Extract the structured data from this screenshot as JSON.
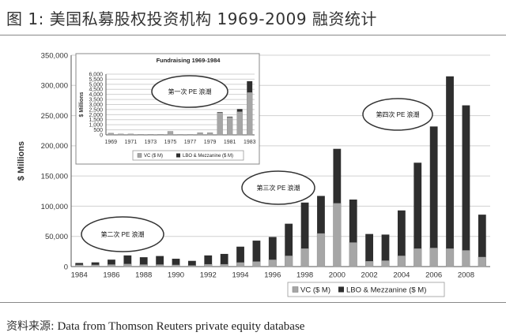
{
  "header": {
    "title": "图 1:  美国私募股权投资机构 1969-2009 融资统计"
  },
  "footer": {
    "source_label": "资料来源:",
    "source_text": "Data from Thomson Reuters private equity database"
  },
  "colors": {
    "vc": "#a6a6a6",
    "lbo": "#2e2e2e",
    "grid": "#d0d0d0",
    "axis": "#555555",
    "bubble_fill": "#ffffff",
    "bubble_stroke": "#333333"
  },
  "chart_data": [
    {
      "type": "bar",
      "stacked": true,
      "ylabel": "$ Millions",
      "ylim": [
        0,
        350000
      ],
      "yticks": [
        "0",
        "50,000",
        "100,000",
        "150,000",
        "200,000",
        "250,000",
        "300,000",
        "350,000"
      ],
      "categories": [
        "1984",
        "1985",
        "1986",
        "1987",
        "1988",
        "1989",
        "1990",
        "1991",
        "1992",
        "1993",
        "1994",
        "1995",
        "1996",
        "1997",
        "1998",
        "1999",
        "2000",
        "2001",
        "2002",
        "2003",
        "2004",
        "2005",
        "2006",
        "2007",
        "2008",
        "2009"
      ],
      "xtick_labels": [
        "1984",
        "1986",
        "1988",
        "1990",
        "1992",
        "1994",
        "1996",
        "1998",
        "2000",
        "2002",
        "2004",
        "2006",
        "2008"
      ],
      "series": [
        {
          "name": "VC ($ M)",
          "values": [
            3000,
            3000,
            3500,
            4500,
            3500,
            3500,
            3000,
            2000,
            4000,
            4000,
            7000,
            8500,
            11500,
            18000,
            30000,
            55000,
            105000,
            40000,
            9000,
            10000,
            18000,
            30000,
            31000,
            30000,
            27000,
            16000
          ]
        },
        {
          "name": "LBO & Mezzanine ($ M)",
          "values": [
            3000,
            4000,
            8000,
            14000,
            12000,
            14000,
            10000,
            7500,
            14500,
            17000,
            26000,
            34500,
            37500,
            53000,
            76000,
            62000,
            90000,
            71000,
            45000,
            43000,
            75000,
            142000,
            201000,
            285000,
            240000,
            70000
          ]
        }
      ],
      "legend_position": "bottom",
      "annotations": [
        "第二次 PE 浪潮",
        "第三次 PE 浪潮",
        "第四次 PE 浪潮"
      ],
      "grid": true
    },
    {
      "type": "bar",
      "stacked": true,
      "title": "Fundraising 1969-1984",
      "ylabel": "$ Millions",
      "ylim": [
        0,
        6000
      ],
      "yticks": [
        "0",
        "500",
        "1,000",
        "1,500",
        "2,000",
        "2,500",
        "3,000",
        "3,500",
        "4,000",
        "4,500",
        "5,000",
        "5,500",
        "6,000"
      ],
      "categories": [
        "1969",
        "1970",
        "1971",
        "1972",
        "1973",
        "1974",
        "1975",
        "1976",
        "1977",
        "1978",
        "1979",
        "1980",
        "1981",
        "1982",
        "1983"
      ],
      "xtick_labels": [
        "1969",
        "1971",
        "1973",
        "1975",
        "1977",
        "1979",
        "1981",
        "1983"
      ],
      "series": [
        {
          "name": "VC ($ M)",
          "values": [
            170,
            95,
            95,
            60,
            60,
            60,
            350,
            50,
            50,
            220,
            220,
            2200,
            1750,
            2300,
            4200
          ]
        },
        {
          "name": "LBO & Mezzanine ($ M)",
          "values": [
            0,
            0,
            0,
            0,
            0,
            0,
            0,
            0,
            0,
            0,
            0,
            50,
            50,
            250,
            1100
          ]
        }
      ],
      "legend_position": "bottom",
      "annotations": [
        "第一次 PE 浪潮"
      ],
      "grid": true
    }
  ]
}
